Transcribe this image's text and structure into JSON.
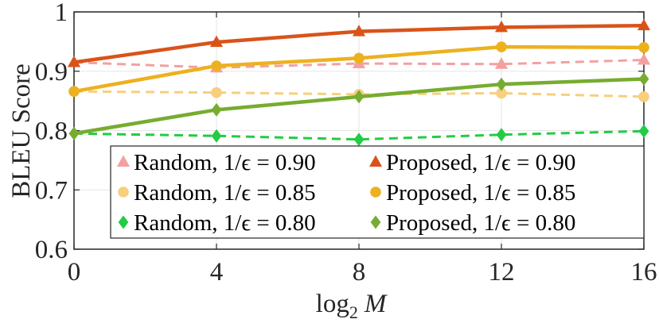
{
  "chart_data": {
    "type": "line",
    "title": "",
    "xlabel": "log",
    "xlabel_sub": "2",
    "xlabel_var": "M",
    "ylabel": "BLEU Score",
    "x": [
      0,
      4,
      8,
      12,
      16
    ],
    "xlim": [
      0,
      16
    ],
    "ylim": [
      0.6,
      1.0
    ],
    "xticks": [
      "0",
      "4",
      "8",
      "12",
      "16"
    ],
    "yticks": [
      "0.6",
      "0.7",
      "0.8",
      "0.9",
      "1"
    ],
    "grid": true,
    "legend_position": "bottom-right",
    "series": [
      {
        "name": "Random, 1/ϵ = 0.90",
        "color": "#f4a0a0",
        "marker": "triangle",
        "dashed": true,
        "values": [
          0.915,
          0.906,
          0.913,
          0.912,
          0.919
        ]
      },
      {
        "name": "Proposed, 1/ϵ = 0.90",
        "color": "#d95319",
        "marker": "triangle",
        "dashed": false,
        "values": [
          0.915,
          0.949,
          0.967,
          0.974,
          0.977
        ]
      },
      {
        "name": "Random, 1/ϵ = 0.85",
        "color": "#f7cf7d",
        "marker": "circle",
        "dashed": true,
        "values": [
          0.866,
          0.864,
          0.861,
          0.863,
          0.857
        ]
      },
      {
        "name": "Proposed, 1/ϵ = 0.85",
        "color": "#edb120",
        "marker": "circle",
        "dashed": false,
        "values": [
          0.866,
          0.909,
          0.922,
          0.941,
          0.94
        ]
      },
      {
        "name": "Random, 1/ϵ = 0.80",
        "color": "#22cc44",
        "marker": "diamond",
        "dashed": true,
        "values": [
          0.795,
          0.791,
          0.785,
          0.793,
          0.799
        ]
      },
      {
        "name": "Proposed, 1/ϵ = 0.80",
        "color": "#77ac30",
        "marker": "diamond",
        "dashed": false,
        "values": [
          0.795,
          0.835,
          0.857,
          0.878,
          0.887
        ]
      }
    ]
  }
}
